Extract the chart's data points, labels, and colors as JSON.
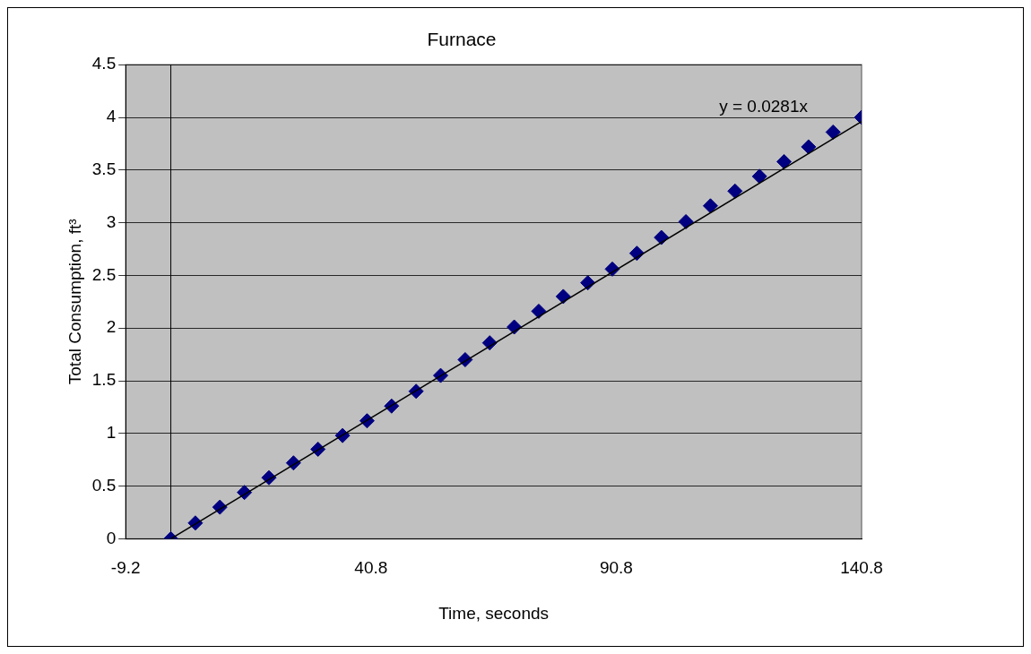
{
  "chart_data": {
    "type": "scatter",
    "title": "Furnace",
    "xlabel": "Time, seconds",
    "ylabel": "Total Consumption, ft³",
    "xlim": [
      -9.2,
      140.8
    ],
    "xticks": [
      -9.2,
      40.8,
      90.8,
      140.8
    ],
    "ylim": [
      0,
      4.5
    ],
    "yticks": [
      0,
      0.5,
      1,
      1.5,
      2,
      2.5,
      3,
      3.5,
      4,
      4.5
    ],
    "grid": "y",
    "legend": false,
    "marker": "diamond",
    "ref_lines": [
      {
        "axis": "x",
        "value": 0,
        "color": "#000000"
      }
    ],
    "annotations": [
      "y = 0.0281x"
    ],
    "series": [
      {
        "color": "#000080",
        "x": [
          0,
          5,
          10,
          15,
          20,
          25,
          30,
          35,
          40,
          45,
          50,
          55,
          60,
          65,
          70,
          75,
          80,
          85,
          90,
          95,
          100,
          105,
          110,
          115,
          120,
          125,
          130,
          135,
          140.8
        ],
        "values": [
          0,
          0.15,
          0.3,
          0.44,
          0.58,
          0.72,
          0.85,
          0.98,
          1.12,
          1.26,
          1.4,
          1.55,
          1.7,
          1.86,
          2.01,
          2.16,
          2.3,
          2.43,
          2.56,
          2.71,
          2.86,
          3.01,
          3.16,
          3.3,
          3.44,
          3.58,
          3.72,
          3.86,
          4.0
        ]
      },
      {
        "type": "line",
        "color": "#000000",
        "marker": "none",
        "x": [
          0,
          140.8
        ],
        "values": [
          0,
          3.96
        ]
      }
    ]
  }
}
